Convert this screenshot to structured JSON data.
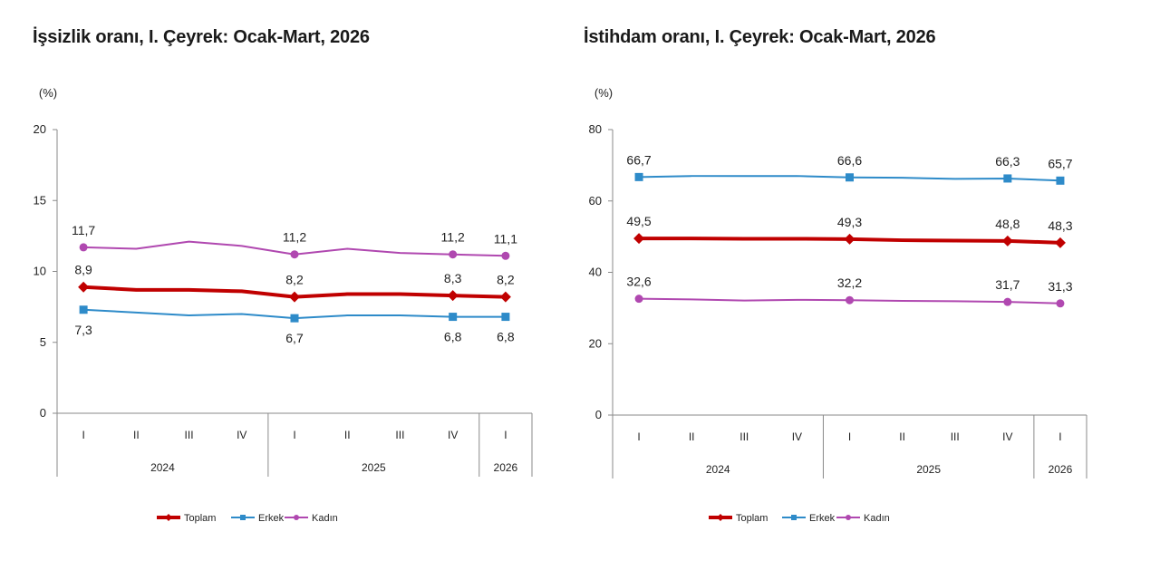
{
  "chart_data": [
    {
      "type": "line",
      "title": "İşsizlik oranı, I. Çeyrek: Ocak-Mart, 2026",
      "ylabel": "(%)",
      "ylim": [
        0,
        20
      ],
      "yticks": [
        "0",
        "5",
        "10",
        "15",
        "20"
      ],
      "x": [
        "I",
        "II",
        "III",
        "IV",
        "I",
        "II",
        "III",
        "IV",
        "I"
      ],
      "years": [
        {
          "label": "2024",
          "span": [
            0,
            3
          ]
        },
        {
          "label": "2025",
          "span": [
            4,
            7
          ]
        },
        {
          "label": "2026",
          "span": [
            8,
            8
          ]
        }
      ],
      "series": [
        {
          "name": "Toplam",
          "color": "#c00000",
          "width": 4,
          "marker": "diamond",
          "values": [
            8.9,
            8.7,
            8.7,
            8.6,
            8.2,
            8.4,
            8.4,
            8.3,
            8.2
          ],
          "labels": [
            "8,9",
            "",
            "",
            "",
            "8,2",
            "",
            "",
            "8,3",
            "8,2"
          ],
          "label_pos": "above"
        },
        {
          "name": "Erkek",
          "color": "#2e8bc9",
          "width": 2,
          "marker": "square",
          "values": [
            7.3,
            7.1,
            6.9,
            7.0,
            6.7,
            6.9,
            6.9,
            6.8,
            6.8
          ],
          "labels": [
            "7,3",
            "",
            "",
            "",
            "6,7",
            "",
            "",
            "6,8",
            "6,8"
          ],
          "label_pos": "below"
        },
        {
          "name": "Kadın",
          "color": "#b048b0",
          "width": 2,
          "marker": "circle",
          "values": [
            11.7,
            11.6,
            12.1,
            11.8,
            11.2,
            11.6,
            11.3,
            11.2,
            11.1
          ],
          "labels": [
            "11,7",
            "",
            "",
            "",
            "11,2",
            "",
            "",
            "11,2",
            "11,1"
          ],
          "label_pos": "above"
        }
      ],
      "legend": [
        "Toplam",
        "Erkek",
        "Kadın"
      ],
      "legend_placement": "bottom-center",
      "grid": false
    },
    {
      "type": "line",
      "title": "İstihdam oranı, I. Çeyrek: Ocak-Mart, 2026",
      "ylabel": "(%)",
      "ylim": [
        0,
        80
      ],
      "yticks": [
        "0",
        "20",
        "40",
        "60",
        "80"
      ],
      "x": [
        "I",
        "II",
        "III",
        "IV",
        "I",
        "II",
        "III",
        "IV",
        "I"
      ],
      "years": [
        {
          "label": "2024",
          "span": [
            0,
            3
          ]
        },
        {
          "label": "2025",
          "span": [
            4,
            7
          ]
        },
        {
          "label": "2026",
          "span": [
            8,
            8
          ]
        }
      ],
      "series": [
        {
          "name": "Toplam",
          "color": "#c00000",
          "width": 4,
          "marker": "diamond",
          "values": [
            49.5,
            49.5,
            49.4,
            49.4,
            49.3,
            49.0,
            48.9,
            48.8,
            48.3
          ],
          "labels": [
            "49,5",
            "",
            "",
            "",
            "49,3",
            "",
            "",
            "48,8",
            "48,3"
          ],
          "label_pos": "above"
        },
        {
          "name": "Erkek",
          "color": "#2e8bc9",
          "width": 2,
          "marker": "square",
          "values": [
            66.7,
            67.0,
            67.0,
            67.0,
            66.6,
            66.5,
            66.2,
            66.3,
            65.7
          ],
          "labels": [
            "66,7",
            "",
            "",
            "",
            "66,6",
            "",
            "",
            "66,3",
            "65,7"
          ],
          "label_pos": "above"
        },
        {
          "name": "Kadın",
          "color": "#b048b0",
          "width": 2,
          "marker": "circle",
          "values": [
            32.6,
            32.4,
            32.1,
            32.3,
            32.2,
            32.0,
            31.9,
            31.7,
            31.3
          ],
          "labels": [
            "32,6",
            "",
            "",
            "",
            "32,2",
            "",
            "",
            "31,7",
            "31,3"
          ],
          "label_pos": "above"
        }
      ],
      "legend": [
        "Toplam",
        "Erkek",
        "Kadın"
      ],
      "legend_placement": "bottom-center",
      "grid": false
    }
  ]
}
